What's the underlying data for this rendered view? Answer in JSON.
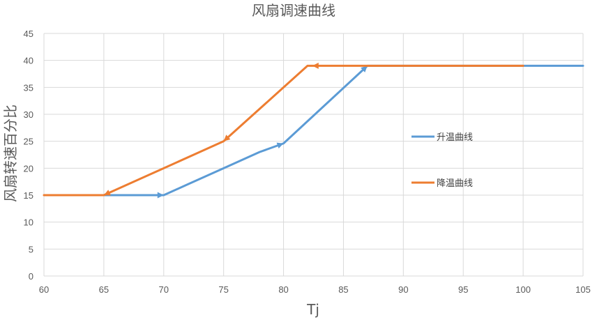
{
  "chart_data": {
    "type": "line",
    "title": "风扇调速曲线",
    "xlabel": "Tj",
    "ylabel": "风扇转速百分比",
    "xlim": [
      60,
      105
    ],
    "ylim": [
      0,
      45
    ],
    "xticks": [
      60,
      65,
      70,
      75,
      80,
      85,
      90,
      95,
      100,
      105
    ],
    "yticks": [
      0,
      5,
      10,
      15,
      20,
      25,
      30,
      35,
      40,
      45
    ],
    "grid": true,
    "legend_position": "right",
    "series": [
      {
        "name": "升温曲线",
        "color": "#5b9bd5",
        "x": [
          65,
          70,
          72,
          75,
          78,
          80,
          87,
          100,
          105
        ],
        "y": [
          15,
          15,
          17,
          20,
          23,
          24.6,
          39,
          39,
          39
        ],
        "arrows_at": [
          [
            70,
            15
          ],
          [
            80,
            24.6
          ],
          [
            87,
            39
          ]
        ]
      },
      {
        "name": "降温曲线",
        "color": "#ed7d31",
        "x": [
          60,
          65,
          70,
          73,
          75,
          82,
          100
        ],
        "y": [
          15,
          15,
          20,
          23,
          25,
          39,
          39
        ],
        "arrows_at": [
          [
            82,
            39
          ],
          [
            75,
            25
          ],
          [
            65,
            15
          ]
        ]
      }
    ]
  }
}
